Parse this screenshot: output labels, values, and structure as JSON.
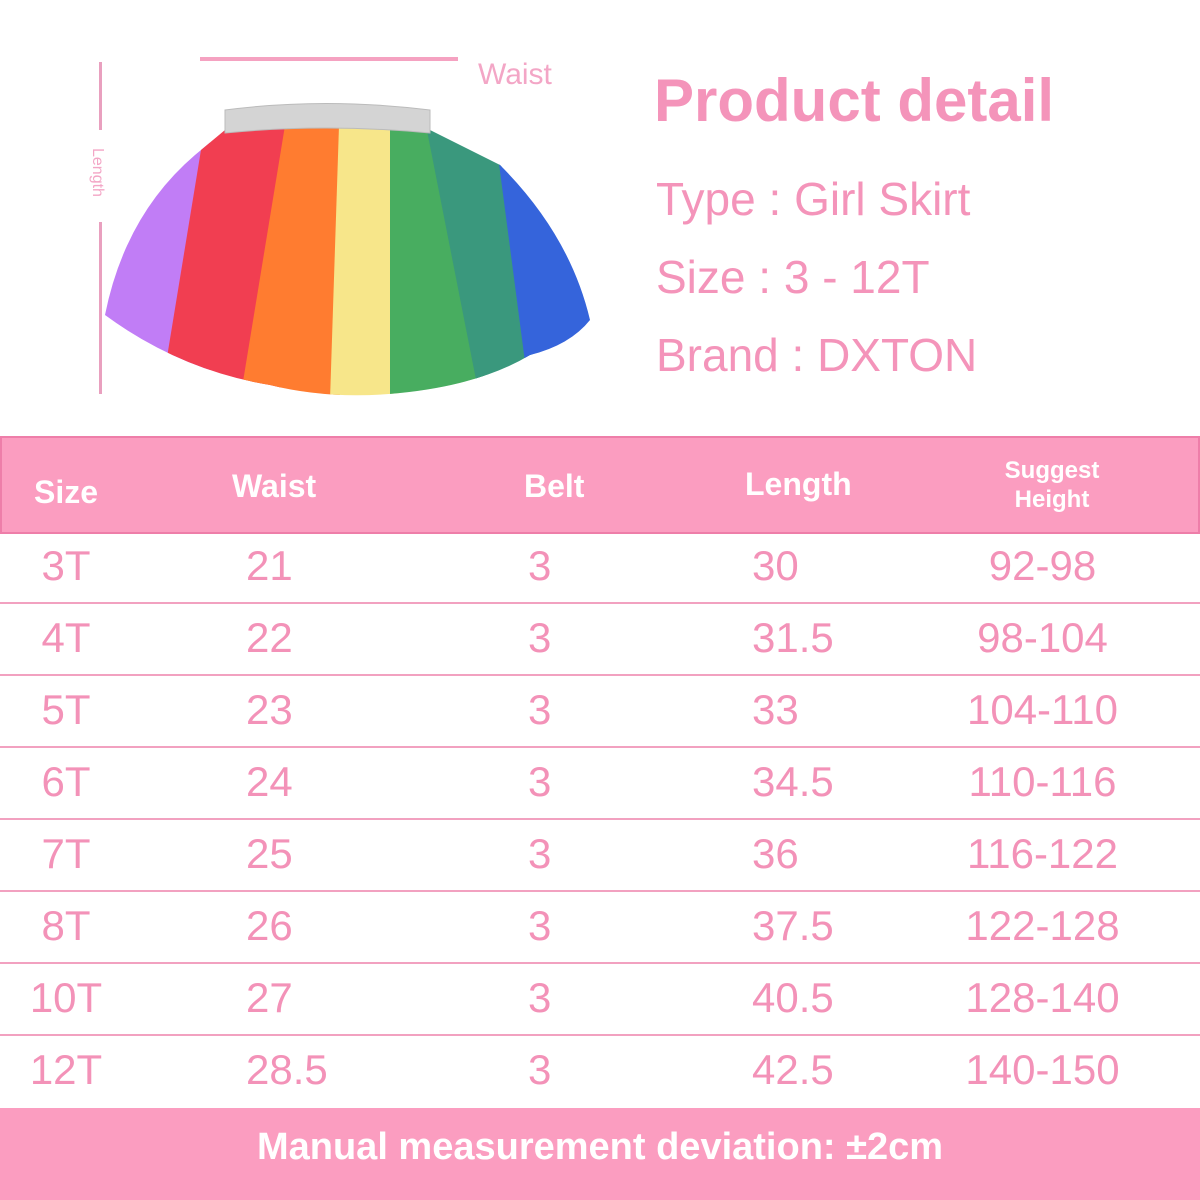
{
  "diagram": {
    "waist_label": "Waist",
    "length_label": "Length"
  },
  "product": {
    "title": "Product detail",
    "type": "Type : Girl Skirt",
    "size": "Size :  3 - 12T",
    "brand": "Brand : DXTON"
  },
  "table": {
    "headers": [
      "Size",
      "Waist",
      "Belt",
      "Length",
      "Suggest Height"
    ],
    "header_lines": {
      "suggest": "Suggest",
      "height": "Height"
    },
    "rows": [
      [
        "3T",
        "21",
        "3",
        "30",
        "92-98"
      ],
      [
        "4T",
        "22",
        "3",
        "31.5",
        "98-104"
      ],
      [
        "5T",
        "23",
        "3",
        "33",
        "104-110"
      ],
      [
        "6T",
        "24",
        "3",
        "34.5",
        "110-116"
      ],
      [
        "7T",
        "25",
        "3",
        "36",
        "116-122"
      ],
      [
        "8T",
        "26",
        "3",
        "37.5",
        "122-128"
      ],
      [
        "10T",
        "27",
        "3",
        "40.5",
        "128-140"
      ],
      [
        "12T",
        "28.5",
        "3",
        "42.5",
        "140-150"
      ]
    ]
  },
  "footer": {
    "note": "Manual measurement deviation: ±2cm"
  },
  "colors": {
    "accent": "#fb9dc0",
    "text": "#f392b8"
  }
}
